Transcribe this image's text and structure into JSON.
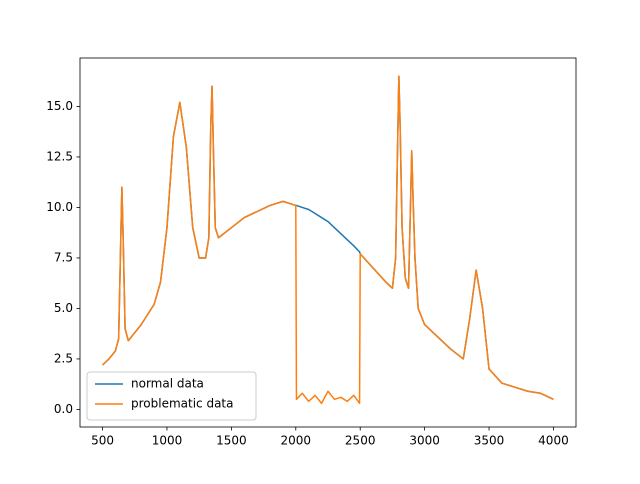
{
  "chart_data": {
    "type": "line",
    "x": [
      500,
      550,
      600,
      625,
      640,
      650,
      660,
      675,
      700,
      750,
      800,
      850,
      900,
      950,
      1000,
      1050,
      1100,
      1150,
      1200,
      1250,
      1300,
      1325,
      1340,
      1350,
      1360,
      1375,
      1400,
      1500,
      1600,
      1700,
      1800,
      1900,
      2000,
      2005,
      2050,
      2100,
      2150,
      2200,
      2250,
      2300,
      2350,
      2400,
      2450,
      2495,
      2500,
      2600,
      2700,
      2750,
      2775,
      2790,
      2800,
      2810,
      2825,
      2850,
      2875,
      2890,
      2900,
      2910,
      2925,
      2950,
      3000,
      3100,
      3200,
      3300,
      3350,
      3400,
      3450,
      3500,
      3600,
      3700,
      3800,
      3900,
      4000
    ],
    "series": [
      {
        "name": "normal data",
        "color": "#1f77b4",
        "values": [
          2.2,
          2.5,
          2.9,
          3.5,
          8.0,
          11.0,
          8.5,
          4.0,
          3.4,
          3.8,
          4.2,
          4.7,
          5.2,
          6.3,
          9.0,
          13.5,
          15.2,
          13.0,
          9.0,
          7.5,
          7.5,
          8.5,
          14.0,
          16.0,
          13.0,
          9.0,
          8.5,
          9.0,
          9.5,
          9.8,
          10.1,
          10.3,
          10.1,
          10.1,
          10.0,
          9.9,
          9.7,
          9.5,
          9.3,
          9.0,
          8.7,
          8.4,
          8.1,
          7.8,
          7.7,
          7.0,
          6.3,
          6.0,
          7.5,
          13.0,
          16.5,
          14.0,
          9.0,
          6.5,
          6.0,
          10.0,
          12.8,
          10.5,
          7.5,
          5.0,
          4.2,
          3.6,
          3.0,
          2.5,
          4.5,
          6.9,
          5.0,
          2.0,
          1.3,
          1.1,
          0.9,
          0.8,
          0.5
        ]
      },
      {
        "name": "problematic data",
        "color": "#ff7f0e",
        "values": [
          2.2,
          2.5,
          2.9,
          3.5,
          8.0,
          11.0,
          8.5,
          4.0,
          3.4,
          3.8,
          4.2,
          4.7,
          5.2,
          6.3,
          9.0,
          13.5,
          15.2,
          13.0,
          9.0,
          7.5,
          7.5,
          8.5,
          14.0,
          16.0,
          13.0,
          9.0,
          8.5,
          9.0,
          9.5,
          9.8,
          10.1,
          10.3,
          10.1,
          0.5,
          0.8,
          0.4,
          0.7,
          0.3,
          0.9,
          0.5,
          0.6,
          0.4,
          0.7,
          0.3,
          7.7,
          7.0,
          6.3,
          6.0,
          7.5,
          13.0,
          16.5,
          14.0,
          9.0,
          6.5,
          6.0,
          10.0,
          12.8,
          10.5,
          7.5,
          5.0,
          4.2,
          3.6,
          3.0,
          2.5,
          4.5,
          6.9,
          5.0,
          2.0,
          1.3,
          1.1,
          0.9,
          0.8,
          0.5
        ]
      }
    ],
    "xlim": [
      325,
      4175
    ],
    "ylim": [
      -0.87,
      17.4
    ],
    "xticks": [
      500,
      1000,
      1500,
      2000,
      2500,
      3000,
      3500,
      4000
    ],
    "yticks": [
      {
        "value": 0,
        "label": "0.0"
      },
      2.5,
      {
        "value": 5,
        "label": "5.0"
      },
      7.5,
      {
        "value": 10,
        "label": "10.0"
      },
      12.5,
      {
        "value": 15,
        "label": "15.0"
      }
    ],
    "legend": "lower left"
  }
}
